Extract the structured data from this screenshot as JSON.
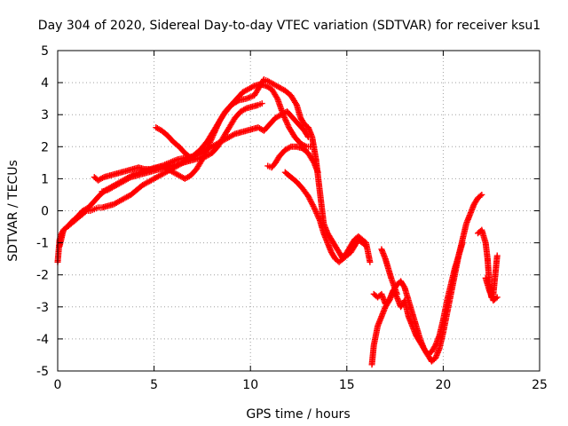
{
  "chart_data": {
    "type": "scatter",
    "title": "Day 304 of 2020, Sidereal Day-to-day VTEC variation (SDTVAR) for receiver ksu1",
    "xlabel": "GPS time / hours",
    "ylabel": "SDTVAR / TECUs",
    "xlim": [
      0,
      25
    ],
    "ylim": [
      -5,
      5
    ],
    "xticks": [
      0,
      5,
      10,
      15,
      20,
      25
    ],
    "yticks": [
      -5,
      -4,
      -3,
      -2,
      -1,
      0,
      1,
      2,
      3,
      4,
      5
    ],
    "grid": true,
    "marker": "plus",
    "color": "#ff0000",
    "series": [
      {
        "x": [
          0.0,
          0.1,
          0.2,
          0.3,
          0.5,
          0.7,
          0.9,
          1.1,
          1.3,
          1.5,
          1.7,
          1.9,
          2.1,
          2.3,
          2.6,
          2.9,
          3.2,
          3.5,
          3.8,
          4.1,
          4.4,
          4.7,
          5.0,
          5.3,
          5.6,
          5.9,
          6.2,
          6.5,
          6.8,
          7.1,
          7.4,
          7.7,
          8.0,
          8.3,
          8.6,
          8.9,
          9.2,
          9.5,
          9.8,
          10.1,
          10.4,
          10.7,
          11.0,
          11.3,
          11.6,
          11.9,
          12.2,
          12.5,
          12.8,
          13.0
        ],
        "y": [
          -1.6,
          -0.9,
          -0.7,
          -0.6,
          -0.5,
          -0.4,
          -0.3,
          -0.2,
          -0.1,
          0.0,
          0.0,
          0.05,
          0.1,
          0.1,
          0.15,
          0.2,
          0.3,
          0.4,
          0.5,
          0.65,
          0.8,
          0.9,
          1.0,
          1.1,
          1.2,
          1.3,
          1.4,
          1.5,
          1.6,
          1.7,
          1.8,
          1.9,
          2.0,
          2.1,
          2.2,
          2.3,
          2.4,
          2.45,
          2.5,
          2.55,
          2.6,
          2.5,
          2.7,
          2.9,
          3.0,
          3.1,
          2.9,
          2.7,
          2.5,
          2.3
        ]
      },
      {
        "x": [
          0.1,
          0.3,
          0.5,
          0.8,
          1.0,
          1.3,
          1.6,
          1.9,
          2.2,
          2.5,
          2.8,
          3.1,
          3.4,
          3.7,
          4.0,
          4.3,
          4.6,
          5.0,
          5.4,
          5.8,
          6.2,
          6.6,
          7.0,
          7.4,
          7.8,
          8.2,
          8.6,
          9.0,
          9.4,
          9.8,
          10.2,
          10.5,
          10.7,
          10.9,
          11.2,
          11.5,
          11.8,
          12.1,
          12.4,
          12.6,
          12.8,
          13.0,
          13.2,
          13.4,
          13.6,
          13.8,
          14.0,
          14.2,
          14.4,
          14.6,
          14.8,
          15.0,
          15.2,
          15.4,
          15.6,
          15.8,
          16.0,
          16.2
        ],
        "y": [
          -1.1,
          -0.6,
          -0.5,
          -0.3,
          -0.2,
          0.0,
          0.1,
          0.3,
          0.5,
          0.65,
          0.75,
          0.85,
          0.95,
          1.05,
          1.15,
          1.2,
          1.25,
          1.3,
          1.4,
          1.5,
          1.6,
          1.65,
          1.7,
          1.9,
          2.2,
          2.6,
          3.0,
          3.3,
          3.45,
          3.5,
          3.6,
          3.9,
          4.1,
          4.05,
          3.95,
          3.85,
          3.75,
          3.6,
          3.3,
          2.9,
          2.7,
          2.6,
          2.3,
          1.6,
          0.6,
          -0.4,
          -0.7,
          -0.9,
          -1.1,
          -1.3,
          -1.5,
          -1.3,
          -1.1,
          -0.9,
          -0.8,
          -0.9,
          -1.0,
          -1.6
        ]
      },
      {
        "x": [
          1.9,
          2.1,
          2.4,
          2.7,
          3.0,
          3.3,
          3.6,
          3.9,
          4.2,
          4.5,
          4.8,
          5.1,
          5.4,
          5.7,
          6.0,
          6.3,
          6.6,
          6.9,
          7.2,
          7.5,
          7.8,
          8.1,
          8.4,
          8.7,
          9.0,
          9.3,
          9.6,
          9.9,
          10.2,
          10.5,
          10.8,
          11.1,
          11.4,
          11.7,
          12.0,
          12.3,
          12.6,
          12.9,
          13.1
        ],
        "y": [
          1.05,
          0.95,
          1.05,
          1.1,
          1.15,
          1.2,
          1.25,
          1.3,
          1.35,
          1.3,
          1.3,
          1.35,
          1.4,
          1.3,
          1.2,
          1.1,
          1.0,
          1.1,
          1.3,
          1.6,
          2.0,
          2.4,
          2.8,
          3.1,
          3.3,
          3.5,
          3.7,
          3.8,
          3.9,
          3.95,
          3.9,
          3.8,
          3.5,
          3.0,
          2.6,
          2.3,
          2.1,
          2.0,
          2.0
        ]
      },
      {
        "x": [
          2.3,
          2.6,
          2.9,
          3.2,
          3.5,
          3.8,
          4.1,
          4.4,
          4.7,
          5.0,
          5.3,
          5.6,
          5.9,
          6.2,
          6.5,
          6.8,
          7.1,
          7.4,
          7.7,
          8.0,
          8.3,
          8.6,
          8.9,
          9.2,
          9.5,
          9.8,
          10.1,
          10.4,
          10.6
        ],
        "y": [
          0.6,
          0.65,
          0.75,
          0.85,
          0.95,
          1.05,
          1.1,
          1.15,
          1.2,
          1.25,
          1.3,
          1.35,
          1.4,
          1.45,
          1.5,
          1.55,
          1.6,
          1.65,
          1.7,
          1.8,
          2.0,
          2.3,
          2.6,
          2.9,
          3.1,
          3.2,
          3.25,
          3.3,
          3.35
        ]
      },
      {
        "x": [
          5.1,
          5.4,
          5.7,
          6.0,
          6.3,
          6.6,
          6.9
        ],
        "y": [
          2.6,
          2.5,
          2.35,
          2.15,
          2.0,
          1.8,
          1.65
        ]
      },
      {
        "x": [
          10.9,
          11.1,
          11.3,
          11.5,
          11.8,
          12.1,
          12.4,
          12.7,
          13.0,
          13.3,
          13.5
        ],
        "y": [
          1.4,
          1.35,
          1.5,
          1.7,
          1.9,
          2.0,
          2.0,
          1.95,
          1.8,
          1.5,
          1.2
        ]
      },
      {
        "x": [
          11.8,
          12.1,
          12.4,
          12.7,
          13.0,
          13.3,
          13.6,
          13.8,
          14.0,
          14.2,
          14.4,
          14.6,
          14.8,
          15.0,
          15.2,
          15.4,
          15.6,
          15.8,
          16.0
        ],
        "y": [
          1.2,
          1.05,
          0.9,
          0.7,
          0.45,
          0.1,
          -0.3,
          -0.7,
          -1.0,
          -1.3,
          -1.5,
          -1.6,
          -1.5,
          -1.4,
          -1.3,
          -1.1,
          -0.9,
          -1.0,
          -1.1
        ]
      },
      {
        "x": [
          16.3,
          16.4,
          16.6,
          16.8,
          17.0,
          17.2,
          17.4,
          17.6,
          17.8,
          18.0,
          18.2,
          18.4,
          18.6,
          18.8,
          19.0,
          19.2,
          19.4,
          19.6,
          19.8,
          20.0,
          20.2,
          20.4,
          20.6,
          20.8,
          21.0,
          21.2,
          21.4,
          21.6,
          21.8,
          22.0
        ],
        "y": [
          -4.8,
          -4.2,
          -3.6,
          -3.3,
          -3.0,
          -2.8,
          -2.5,
          -2.3,
          -2.2,
          -2.4,
          -2.8,
          -3.2,
          -3.6,
          -4.0,
          -4.3,
          -4.5,
          -4.7,
          -4.6,
          -4.3,
          -3.8,
          -3.2,
          -2.6,
          -2.0,
          -1.4,
          -0.9,
          -0.4,
          -0.1,
          0.2,
          0.4,
          0.5
        ]
      },
      {
        "x": [
          16.4,
          16.6,
          16.8,
          17.0,
          17.2,
          17.4,
          17.6,
          17.8,
          18.0,
          18.2,
          18.4,
          18.6,
          18.8,
          19.0,
          19.2,
          19.4,
          19.6,
          19.8,
          20.0,
          20.2,
          20.4,
          20.6,
          20.8,
          21.0
        ],
        "y": [
          -2.6,
          -2.7,
          -2.6,
          -2.9,
          -2.8,
          -2.5,
          -2.7,
          -3.0,
          -2.8,
          -3.3,
          -3.6,
          -3.9,
          -4.1,
          -4.3,
          -4.5,
          -4.4,
          -4.2,
          -3.9,
          -3.4,
          -2.8,
          -2.3,
          -1.8,
          -1.4,
          -1.0
        ]
      },
      {
        "x": [
          16.8,
          17.0,
          17.3,
          17.6
        ],
        "y": [
          -1.2,
          -1.5,
          -2.1,
          -2.6
        ]
      },
      {
        "x": [
          21.8,
          22.0,
          22.2,
          22.3,
          22.4,
          22.5,
          22.6,
          22.7,
          22.8
        ],
        "y": [
          -0.7,
          -0.6,
          -1.0,
          -1.5,
          -2.3,
          -2.7,
          -2.6,
          -2.0,
          -1.4
        ]
      },
      {
        "x": [
          22.2,
          22.4,
          22.6,
          22.8
        ],
        "y": [
          -2.1,
          -2.5,
          -2.8,
          -2.7
        ]
      }
    ]
  }
}
